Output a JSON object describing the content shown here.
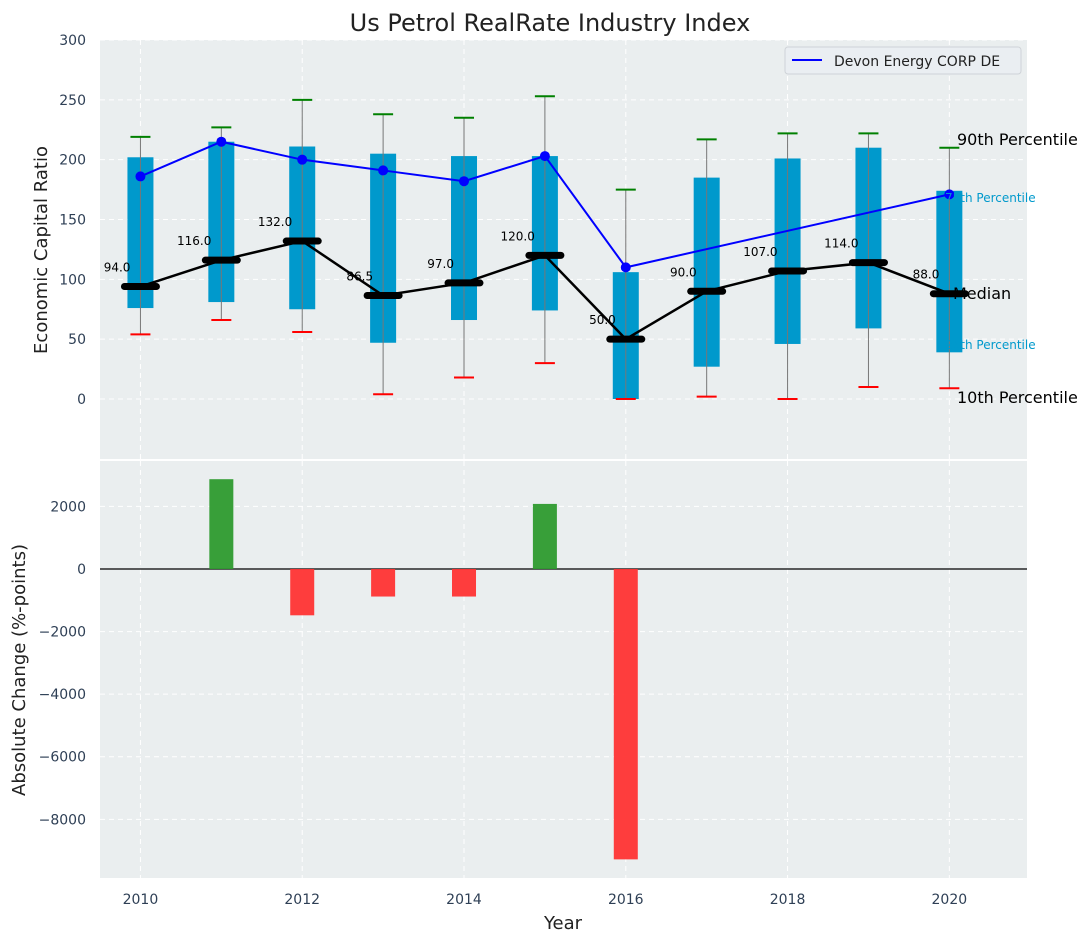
{
  "chart_data": [
    {
      "type": "box-percentile",
      "title": "Us Petrol RealRate Industry Index",
      "xlabel": "",
      "ylabel": "Economic Capital Ratio",
      "ylim": [
        -50,
        300
      ],
      "yticks": [
        0,
        50,
        100,
        150,
        200,
        250,
        300
      ],
      "xlim": [
        2009.5,
        2020.96
      ],
      "grid": true,
      "legend": {
        "placement": "top-right",
        "entries": [
          "Devon Energy CORP DE"
        ]
      },
      "x": [
        2010,
        2011,
        2012,
        2013,
        2014,
        2015,
        2016,
        2017,
        2018,
        2019,
        2020
      ],
      "p10": [
        54,
        66,
        56,
        4,
        18,
        30,
        0,
        2,
        0,
        10,
        9
      ],
      "p25": [
        76,
        81,
        75,
        47,
        66,
        74,
        0,
        27,
        46,
        59,
        39
      ],
      "median": [
        94.0,
        116.0,
        132.0,
        86.5,
        97.0,
        120.0,
        50.0,
        90.0,
        107.0,
        114.0,
        88.0
      ],
      "median_labels": [
        "94.0",
        "116.0",
        "132.0",
        "86.5",
        "97.0",
        "120.0",
        "50.0",
        "90.0",
        "107.0",
        "114.0",
        "88.0"
      ],
      "p75": [
        202,
        215,
        211,
        205,
        203,
        203,
        106,
        185,
        201,
        210,
        174
      ],
      "p90": [
        219,
        227,
        250,
        238,
        235,
        253,
        175,
        217,
        222,
        222,
        210
      ],
      "series": [
        {
          "name": "Devon Energy CORP DE",
          "color": "#0000ff",
          "values": [
            186,
            215,
            200,
            191,
            182,
            203,
            110,
            null,
            null,
            null,
            171
          ]
        }
      ],
      "annotations": [
        "90th Percentile",
        "75th Percentile",
        "Median",
        "25th Percentile",
        "10th Percentile"
      ]
    },
    {
      "type": "bar",
      "xlabel": "Year",
      "ylabel": "Absolute Change (%-points)",
      "ylim": [
        -9870,
        3480
      ],
      "yticks": [
        -8000,
        -6000,
        -4000,
        -2000,
        0,
        2000
      ],
      "xticks": [
        2010,
        2012,
        2014,
        2016,
        2018,
        2020
      ],
      "grid": true,
      "x": [
        2011,
        2012,
        2013,
        2014,
        2015,
        2016
      ],
      "values": [
        2870,
        -1480,
        -880,
        -880,
        2080,
        -9280
      ]
    }
  ],
  "colors": {
    "box": "#0099cc",
    "median": "#000000",
    "p90": "#008000",
    "p10": "#ff0000",
    "positive": "#2e9a2e",
    "negative": "#ff3333",
    "panel": "#eaeeef"
  }
}
